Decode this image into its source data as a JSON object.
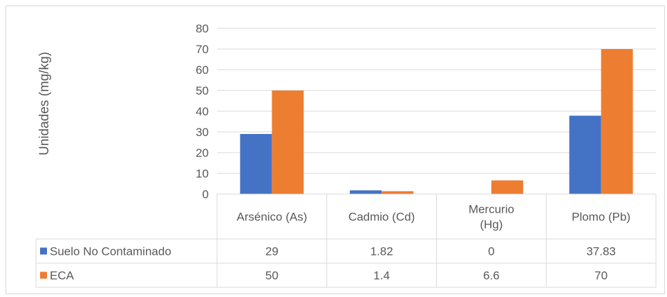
{
  "chart_data": {
    "type": "bar",
    "categories": [
      "Arsénico (As)",
      "Cadmio (Cd)",
      "Mercurio (Hg)",
      "Plomo (Pb)"
    ],
    "category_lines": [
      [
        "Arsénico (As)"
      ],
      [
        "Cadmio (Cd)"
      ],
      [
        "Mercurio",
        "(Hg)"
      ],
      [
        "Plomo (Pb)"
      ]
    ],
    "series": [
      {
        "name": "Suelo No Contaminado",
        "values": [
          29,
          1.82,
          0,
          37.83
        ],
        "labels": [
          "29",
          "1.82",
          "0",
          "37.83"
        ],
        "color": "#4472c4"
      },
      {
        "name": "ECA",
        "values": [
          50,
          1.4,
          6.6,
          70
        ],
        "labels": [
          "50",
          "1.4",
          "6.6",
          "70"
        ],
        "color": "#ed7d31"
      }
    ],
    "ylabel": "Unidades (mg/kg)",
    "ylim": [
      0,
      80
    ],
    "yticks": [
      0,
      10,
      20,
      30,
      40,
      50,
      60,
      70,
      80
    ],
    "grid": true,
    "legend": "data-table"
  }
}
